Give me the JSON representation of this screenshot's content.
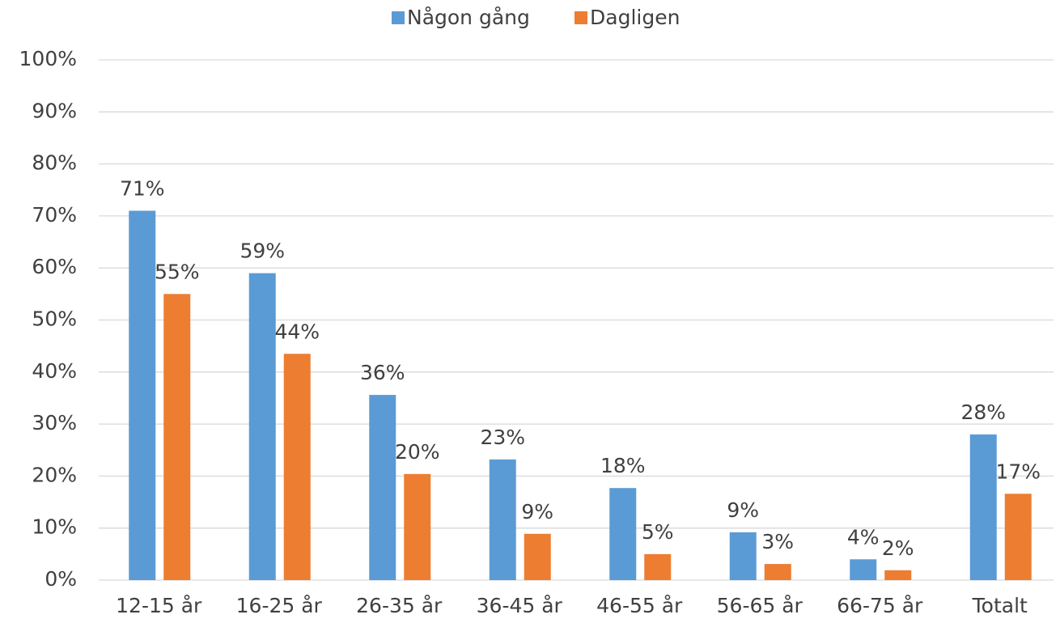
{
  "chart_data": {
    "type": "bar",
    "categories": [
      "12-15 år",
      "16-25 år",
      "26-35 år",
      "36-45 år",
      "46-55 år",
      "56-65 år",
      "66-75 år",
      "Totalt"
    ],
    "series": [
      {
        "name": "Någon gång",
        "color": "#5b9bd5",
        "values": [
          71,
          59,
          35.6,
          23.2,
          17.7,
          9.2,
          4,
          28
        ],
        "value_labels": [
          "71%",
          "59%",
          "36%",
          "23%",
          "18%",
          "9%",
          "4%",
          "28%"
        ]
      },
      {
        "name": "Dagligen",
        "color": "#ed7d31",
        "values": [
          55,
          43.5,
          20.4,
          8.9,
          5,
          3.1,
          1.9,
          16.6
        ],
        "value_labels": [
          "55%",
          "44%",
          "20%",
          "9%",
          "5%",
          "3%",
          "2%",
          "17%"
        ]
      }
    ],
    "ylim": [
      0,
      100
    ],
    "yticks": [
      {
        "value": 0,
        "label": "0%"
      },
      {
        "value": 10,
        "label": "10%"
      },
      {
        "value": 20,
        "label": "20%"
      },
      {
        "value": 30,
        "label": "30%"
      },
      {
        "value": 40,
        "label": "40%"
      },
      {
        "value": 50,
        "label": "50%"
      },
      {
        "value": 60,
        "label": "60%"
      },
      {
        "value": 70,
        "label": "70%"
      },
      {
        "value": 80,
        "label": "80%"
      },
      {
        "value": 90,
        "label": "90%"
      },
      {
        "value": 100,
        "label": "100%"
      }
    ],
    "grid": true,
    "legend": "top"
  }
}
